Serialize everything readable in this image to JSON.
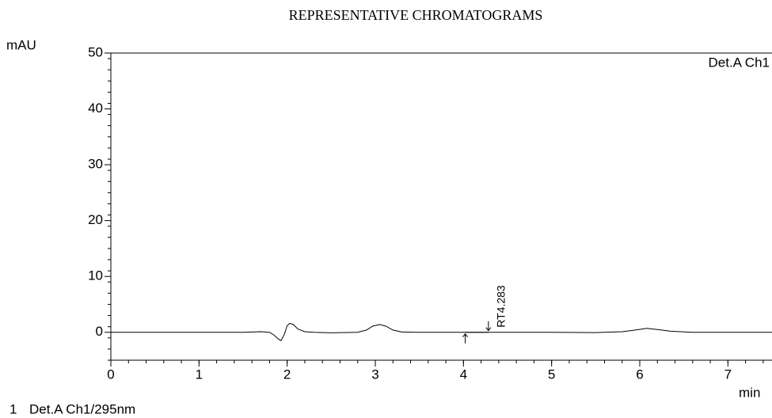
{
  "chart_data": {
    "type": "line",
    "title": "REPRESENTATIVE CHROMATOGRAMS",
    "y_label": "mAU",
    "x_label": "min",
    "channel_label": "Det.A Ch1",
    "legend": {
      "number": "1",
      "text": "Det.A Ch1/295nm"
    },
    "peak": {
      "label": "RT4.283",
      "rt": 4.283,
      "start": 4.02
    },
    "x": [
      0,
      0.5,
      1,
      1.5,
      1.7,
      1.8,
      1.85,
      1.9,
      1.93,
      1.97,
      2.0,
      2.03,
      2.07,
      2.12,
      2.2,
      2.3,
      2.5,
      2.8,
      2.9,
      2.97,
      3.05,
      3.12,
      3.2,
      3.3,
      3.5,
      4.0,
      4.5,
      5.0,
      5.5,
      5.8,
      5.95,
      6.08,
      6.2,
      6.35,
      6.6,
      7.0,
      7.5
    ],
    "series": [
      {
        "name": "Det.A Ch1/295nm",
        "color": "#000000",
        "values": [
          0,
          0,
          0,
          0,
          0.1,
          0,
          -0.5,
          -1.2,
          -1.5,
          -0.3,
          1.2,
          1.6,
          1.4,
          0.6,
          0.1,
          0,
          -0.1,
          0,
          0.4,
          1.1,
          1.4,
          1.1,
          0.4,
          0.05,
          0,
          0,
          0,
          0,
          -0.05,
          0.1,
          0.4,
          0.7,
          0.5,
          0.2,
          0,
          0,
          0
        ]
      }
    ],
    "xlim": [
      0,
      7.5
    ],
    "xticks": [
      0,
      1,
      2,
      3,
      4,
      5,
      6,
      7
    ],
    "ylim": [
      -5,
      50
    ],
    "yticks": [
      0,
      10,
      20,
      30,
      40,
      50
    ]
  }
}
